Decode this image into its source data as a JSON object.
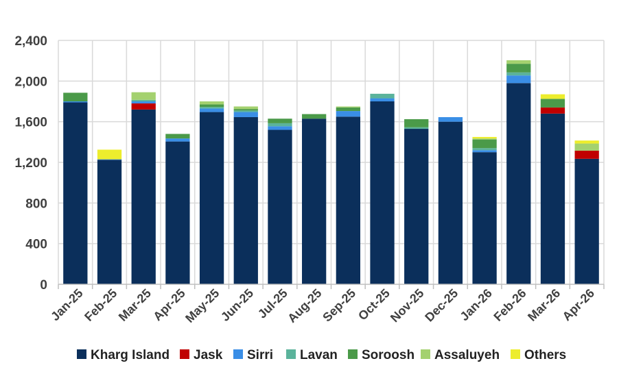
{
  "chart_data": {
    "type": "bar",
    "stacked": true,
    "title": "",
    "xlabel": "",
    "ylabel": "",
    "ylim": [
      0,
      2400
    ],
    "yticks": [
      0,
      400,
      800,
      1200,
      1600,
      2000,
      2400
    ],
    "ytick_labels": [
      "0",
      "400",
      "800",
      "1,200",
      "1,600",
      "2,000",
      "2,400"
    ],
    "grid": true,
    "legend_position": "bottom",
    "categories": [
      "Jan-25",
      "Feb-25",
      "Mar-25",
      "Apr-25",
      "May-25",
      "Jun-25",
      "Jul-25",
      "Aug-25",
      "Sep-25",
      "Oct-25",
      "Nov-25",
      "Dec-25",
      "Jan-26",
      "Feb-26",
      "Mar-26",
      "Apr-26"
    ],
    "series": [
      {
        "name": "Kharg Island",
        "color": "#0b2f5b",
        "values": [
          1790,
          1225,
          1720,
          1405,
          1695,
          1645,
          1520,
          1630,
          1650,
          1800,
          1530,
          1600,
          1300,
          1980,
          1680,
          1235
        ]
      },
      {
        "name": "Jask",
        "color": "#c00000",
        "values": [
          0,
          0,
          60,
          0,
          0,
          0,
          0,
          0,
          0,
          0,
          0,
          0,
          0,
          0,
          60,
          80
        ]
      },
      {
        "name": "Sirri",
        "color": "#3a8ee6",
        "values": [
          10,
          5,
          20,
          30,
          35,
          50,
          35,
          0,
          55,
          30,
          0,
          45,
          20,
          75,
          0,
          0
        ]
      },
      {
        "name": "Lavan",
        "color": "#5bb39b",
        "values": [
          0,
          0,
          15,
          0,
          15,
          15,
          30,
          0,
          0,
          45,
          15,
          0,
          20,
          30,
          0,
          0
        ]
      },
      {
        "name": "Soroosh",
        "color": "#4b9a49",
        "values": [
          85,
          0,
          0,
          45,
          25,
          15,
          45,
          45,
          35,
          0,
          80,
          0,
          85,
          85,
          85,
          0
        ]
      },
      {
        "name": "Assaluyeh",
        "color": "#a4d16f",
        "values": [
          0,
          0,
          75,
          0,
          30,
          25,
          0,
          0,
          10,
          0,
          0,
          0,
          10,
          35,
          0,
          70
        ]
      },
      {
        "name": "Others",
        "color": "#eded2d",
        "values": [
          0,
          95,
          0,
          0,
          0,
          0,
          0,
          0,
          0,
          0,
          0,
          0,
          15,
          0,
          45,
          30
        ]
      }
    ]
  }
}
